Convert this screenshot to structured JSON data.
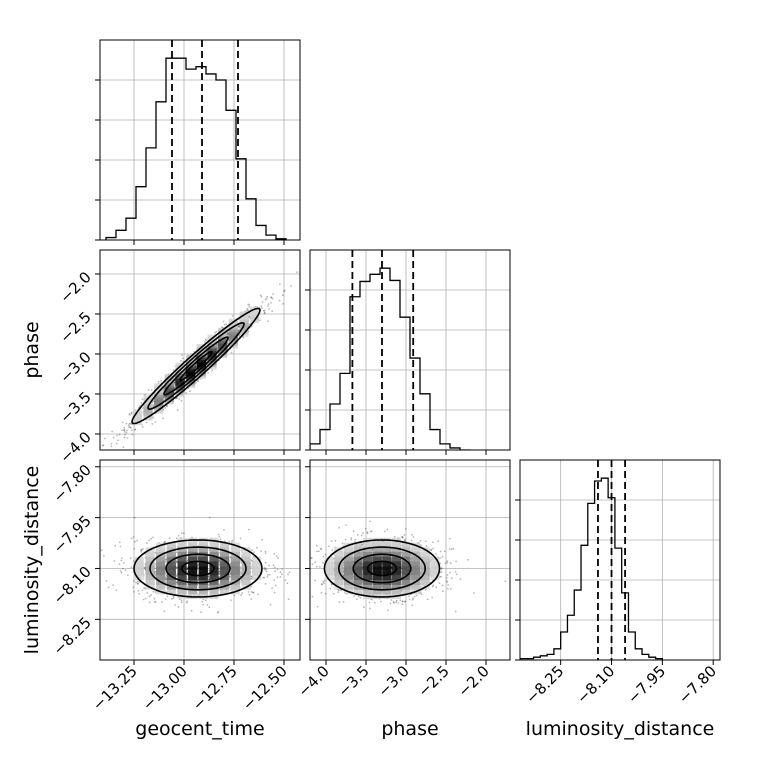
{
  "chart_data": {
    "type": "corner",
    "grid": true,
    "parameters": [
      {
        "name": "geocent_time",
        "label": "geocent_time",
        "range": [
          -13.42,
          -12.42
        ],
        "ticks": [
          -13.25,
          -13.0,
          -12.75,
          -12.5
        ],
        "tick_labels": [
          "−13.25",
          "−13.00",
          "−12.75",
          "−12.50"
        ],
        "quantiles": [
          -13.06,
          -12.91,
          -12.73
        ],
        "hist": {
          "bin_edges": [
            -13.39,
            -13.34,
            -13.29,
            -13.24,
            -13.19,
            -13.14,
            -13.09,
            -13.04,
            -12.99,
            -12.94,
            -12.89,
            -12.84,
            -12.79,
            -12.74,
            -12.69,
            -12.64,
            -12.59,
            -12.54,
            -12.49
          ],
          "counts": [
            2,
            8,
            18,
            44,
            76,
            114,
            150,
            150,
            141,
            143,
            137,
            132,
            107,
            67,
            34,
            12,
            4,
            1
          ]
        }
      },
      {
        "name": "phase",
        "label": "phase",
        "range": [
          -4.2,
          -1.7
        ],
        "ticks": [
          -4.0,
          -3.5,
          -3.0,
          -2.5,
          -2.0
        ],
        "tick_labels": [
          "−4.0",
          "−3.5",
          "−3.0",
          "−2.5",
          "−2.0"
        ],
        "quantiles": [
          -3.67,
          -3.3,
          -2.91
        ],
        "hist": {
          "bin_edges": [
            -4.2,
            -4.075,
            -3.95,
            -3.825,
            -3.7,
            -3.575,
            -3.45,
            -3.325,
            -3.2,
            -3.075,
            -2.95,
            -2.825,
            -2.7,
            -2.575,
            -2.45,
            -2.325,
            -2.2
          ],
          "counts": [
            6,
            20,
            45,
            75,
            150,
            165,
            172,
            178,
            166,
            130,
            90,
            55,
            20,
            6,
            2,
            0
          ]
        }
      },
      {
        "name": "luminosity_distance",
        "label": "luminosity_distance",
        "range": [
          -8.37,
          -7.78
        ],
        "ticks": [
          -8.25,
          -8.1,
          -7.95,
          -7.8
        ],
        "tick_labels": [
          "−8.25",
          "−8.10",
          "−7.95",
          "−7.80"
        ],
        "quantiles": [
          -8.14,
          -8.1,
          -8.06
        ],
        "hist": {
          "bin_edges": [
            -8.37,
            -8.35,
            -8.33,
            -8.31,
            -8.29,
            -8.27,
            -8.25,
            -8.23,
            -8.21,
            -8.19,
            -8.17,
            -8.15,
            -8.13,
            -8.11,
            -8.09,
            -8.07,
            -8.05,
            -8.03,
            -8.01,
            -7.99,
            -7.97,
            -7.95
          ],
          "counts": [
            1,
            1,
            2,
            3,
            4,
            8,
            20,
            32,
            50,
            82,
            112,
            128,
            130,
            116,
            80,
            48,
            20,
            8,
            4,
            2,
            1
          ]
        }
      }
    ],
    "pairs": [
      {
        "x": "geocent_time",
        "y": "phase",
        "center": [
          -12.94,
          -3.15
        ],
        "correlation": 0.97,
        "std": [
          0.16,
          0.36
        ],
        "contour_sigma_levels": [
          0.5,
          1.0,
          1.5,
          2.0
        ]
      },
      {
        "x": "geocent_time",
        "y": "luminosity_distance",
        "center": [
          -12.93,
          -8.1
        ],
        "correlation": 0.0,
        "std": [
          0.16,
          0.042
        ],
        "contour_sigma_levels": [
          0.5,
          1.0,
          1.5,
          2.0
        ]
      },
      {
        "x": "phase",
        "y": "luminosity_distance",
        "center": [
          -3.3,
          -8.1
        ],
        "correlation": 0.0,
        "std": [
          0.36,
          0.042
        ],
        "contour_sigma_levels": [
          0.5,
          1.0,
          1.5,
          2.0
        ]
      }
    ]
  }
}
